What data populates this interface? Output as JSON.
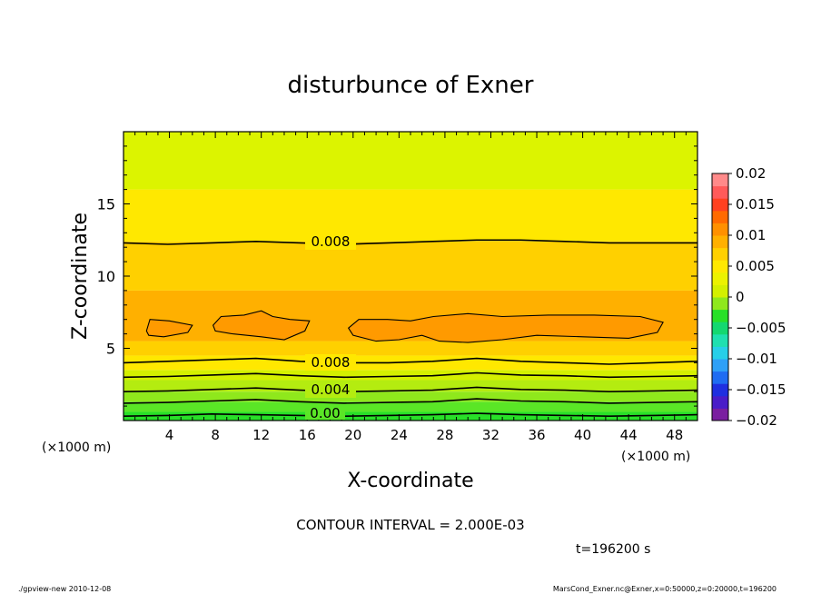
{
  "chart_data": {
    "type": "contour",
    "title": "disturbunce of Exner",
    "xlabel": "X-coordinate",
    "ylabel": "Z-coordinate",
    "x_unit": "(×1000 m)",
    "z_unit": "(×1000 m)",
    "xlim": [
      0,
      50
    ],
    "ylim": [
      0,
      20
    ],
    "x_ticks": [
      "4",
      "8",
      "12",
      "16",
      "20",
      "24",
      "28",
      "32",
      "36",
      "40",
      "44",
      "48"
    ],
    "y_ticks": [
      "5",
      "10",
      "15"
    ],
    "contour_interval_text": "CONTOUR INTERVAL = 2.000E-03",
    "time_text": "t=196200 s",
    "contour_labels": [
      "0.008",
      "0.008",
      "0.004",
      "0.00"
    ],
    "colorbar": {
      "min": -0.02,
      "max": 0.02,
      "tick_labels": [
        "0.02",
        "0.015",
        "0.01",
        "0.005",
        "0",
        "−0.005",
        "−0.01",
        "−0.015",
        "−0.02"
      ],
      "colors": [
        "#7a1ea0",
        "#4a1cc8",
        "#1f2fe0",
        "#1f6cf2",
        "#2ea0f7",
        "#27cfe8",
        "#1fe0b0",
        "#14d870",
        "#28e028",
        "#8fe81c",
        "#d4f000",
        "#ecf200",
        "#ffe800",
        "#ffd000",
        "#ffb000",
        "#ff9000",
        "#ff6a00",
        "#ff4020",
        "#ff5a5a",
        "#ff8a8a"
      ]
    },
    "bands": [
      {
        "z0": 0.0,
        "z1": 0.6,
        "color": "#28e028"
      },
      {
        "z0": 0.6,
        "z1": 1.3,
        "color": "#5ae626"
      },
      {
        "z0": 1.3,
        "z1": 2.0,
        "color": "#8fe81c"
      },
      {
        "z0": 2.0,
        "z1": 2.8,
        "color": "#b4ec10"
      },
      {
        "z0": 2.8,
        "z1": 3.5,
        "color": "#d4f000"
      },
      {
        "z0": 3.5,
        "z1": 4.5,
        "color": "#ffe800"
      },
      {
        "z0": 4.5,
        "z1": 5.5,
        "color": "#ffd000"
      },
      {
        "z0": 5.5,
        "z1": 9.0,
        "color": "#ffb000"
      },
      {
        "z0": 9.0,
        "z1": 12.4,
        "color": "#ffd000"
      },
      {
        "z0": 12.4,
        "z1": 16.0,
        "color": "#ffe800"
      },
      {
        "z0": 16.0,
        "z1": 20.0,
        "color": "#dcf400"
      }
    ],
    "contours": [
      {
        "level": 0.0,
        "z": [
          0.3,
          0.35,
          0.45,
          0.4,
          0.35,
          0.3,
          0.35,
          0.4,
          0.5,
          0.4,
          0.35,
          0.3,
          0.35,
          0.4
        ]
      },
      {
        "level": 0.002,
        "z": [
          1.2,
          1.25,
          1.35,
          1.45,
          1.3,
          1.2,
          1.25,
          1.3,
          1.5,
          1.35,
          1.3,
          1.2,
          1.25,
          1.3
        ]
      },
      {
        "level": 0.004,
        "z": [
          2.0,
          2.05,
          2.15,
          2.25,
          2.1,
          2.0,
          2.05,
          2.1,
          2.3,
          2.15,
          2.1,
          2.0,
          2.05,
          2.1
        ]
      },
      {
        "level": 0.006,
        "z": [
          3.0,
          3.05,
          3.15,
          3.25,
          3.1,
          3.0,
          3.05,
          3.1,
          3.3,
          3.15,
          3.1,
          3.0,
          3.05,
          3.1
        ]
      },
      {
        "level": 0.008,
        "z": [
          4.0,
          4.1,
          4.2,
          4.3,
          4.1,
          4.0,
          4.0,
          4.1,
          4.3,
          4.1,
          4.0,
          3.9,
          4.0,
          4.1
        ]
      },
      {
        "level": 0.008,
        "z": [
          12.3,
          12.2,
          12.3,
          12.4,
          12.3,
          12.2,
          12.3,
          12.4,
          12.5,
          12.5,
          12.4,
          12.3,
          12.3,
          12.3
        ]
      }
    ],
    "closed_regions": [
      {
        "color": "#ff9a00",
        "points": [
          [
            2.0,
            6.2
          ],
          [
            2.3,
            7.0
          ],
          [
            4.0,
            6.9
          ],
          [
            6.0,
            6.6
          ],
          [
            5.6,
            6.1
          ],
          [
            3.5,
            5.8
          ],
          [
            2.2,
            5.9
          ]
        ]
      },
      {
        "color": "#ff9a00",
        "points": [
          [
            7.8,
            6.6
          ],
          [
            8.5,
            7.2
          ],
          [
            10.5,
            7.3
          ],
          [
            12.0,
            7.6
          ],
          [
            13.0,
            7.2
          ],
          [
            14.5,
            7.0
          ],
          [
            16.2,
            6.9
          ],
          [
            15.8,
            6.2
          ],
          [
            14.0,
            5.6
          ],
          [
            12.0,
            5.8
          ],
          [
            9.5,
            6.0
          ],
          [
            8.0,
            6.2
          ]
        ]
      },
      {
        "color": "#ff9a00",
        "points": [
          [
            19.6,
            6.4
          ],
          [
            20.5,
            7.0
          ],
          [
            23.0,
            7.0
          ],
          [
            25.0,
            6.9
          ],
          [
            27.0,
            7.2
          ],
          [
            30.0,
            7.4
          ],
          [
            33.0,
            7.2
          ],
          [
            37.0,
            7.3
          ],
          [
            41.0,
            7.3
          ],
          [
            45.0,
            7.2
          ],
          [
            47.0,
            6.8
          ],
          [
            46.5,
            6.1
          ],
          [
            44.0,
            5.7
          ],
          [
            40.0,
            5.8
          ],
          [
            36.0,
            5.9
          ],
          [
            33.0,
            5.6
          ],
          [
            30.0,
            5.4
          ],
          [
            27.5,
            5.5
          ],
          [
            26.0,
            5.9
          ],
          [
            24.0,
            5.6
          ],
          [
            22.0,
            5.5
          ],
          [
            20.0,
            5.9
          ]
        ]
      }
    ]
  },
  "footer": {
    "left": "./gpview-new   2010-12-08",
    "right": "MarsCond_Exner.nc@Exner,x=0:50000,z=0:20000,t=196200"
  }
}
